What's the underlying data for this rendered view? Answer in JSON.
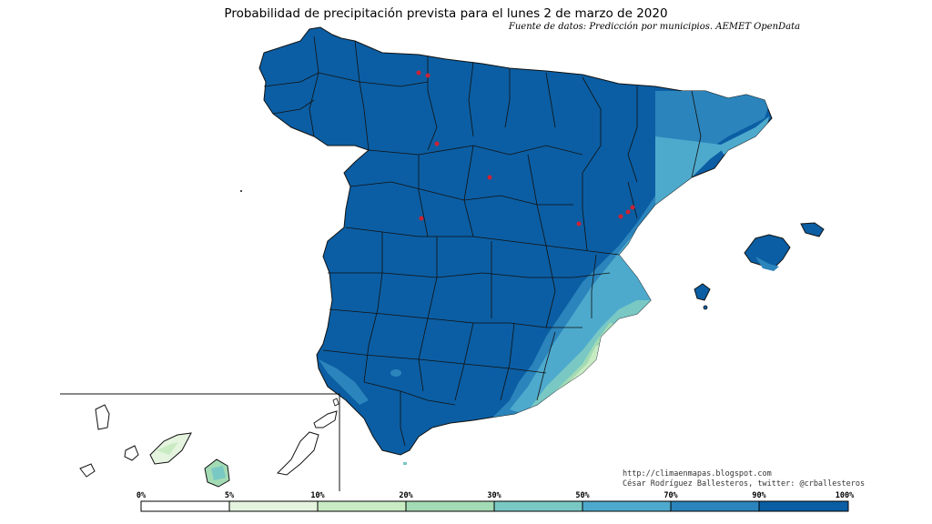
{
  "title": "Probabilidad de precipitación prevista para el lunes 2 de marzo de 2020",
  "subtitle": "Fuente de datos: Predicción por municipios. AEMET OpenData",
  "credits": {
    "line1": "http://climaenmapas.blogspot.com",
    "line2": "César Rodríguez Ballesteros, twitter: @crballesteros"
  },
  "legend": {
    "ticks": [
      "0%",
      "5%",
      "10%",
      "20%",
      "30%",
      "50%",
      "70%",
      "90%",
      "100%"
    ],
    "colors": [
      "#ffffff",
      "#e4f4df",
      "#c9ebc3",
      "#a3dbb4",
      "#79c8c4",
      "#4eaacd",
      "#2b84bb",
      "#0b5ea3"
    ]
  },
  "colors": {
    "dominant": "#0b5ea3",
    "high": "#2b84bb",
    "mid": "#4eaacd",
    "low": "#79c8c4",
    "lower": "#a3dbb4",
    "lowest": "#c9ebc3",
    "border": "#1a1a1a",
    "markers": "#cc2233"
  }
}
